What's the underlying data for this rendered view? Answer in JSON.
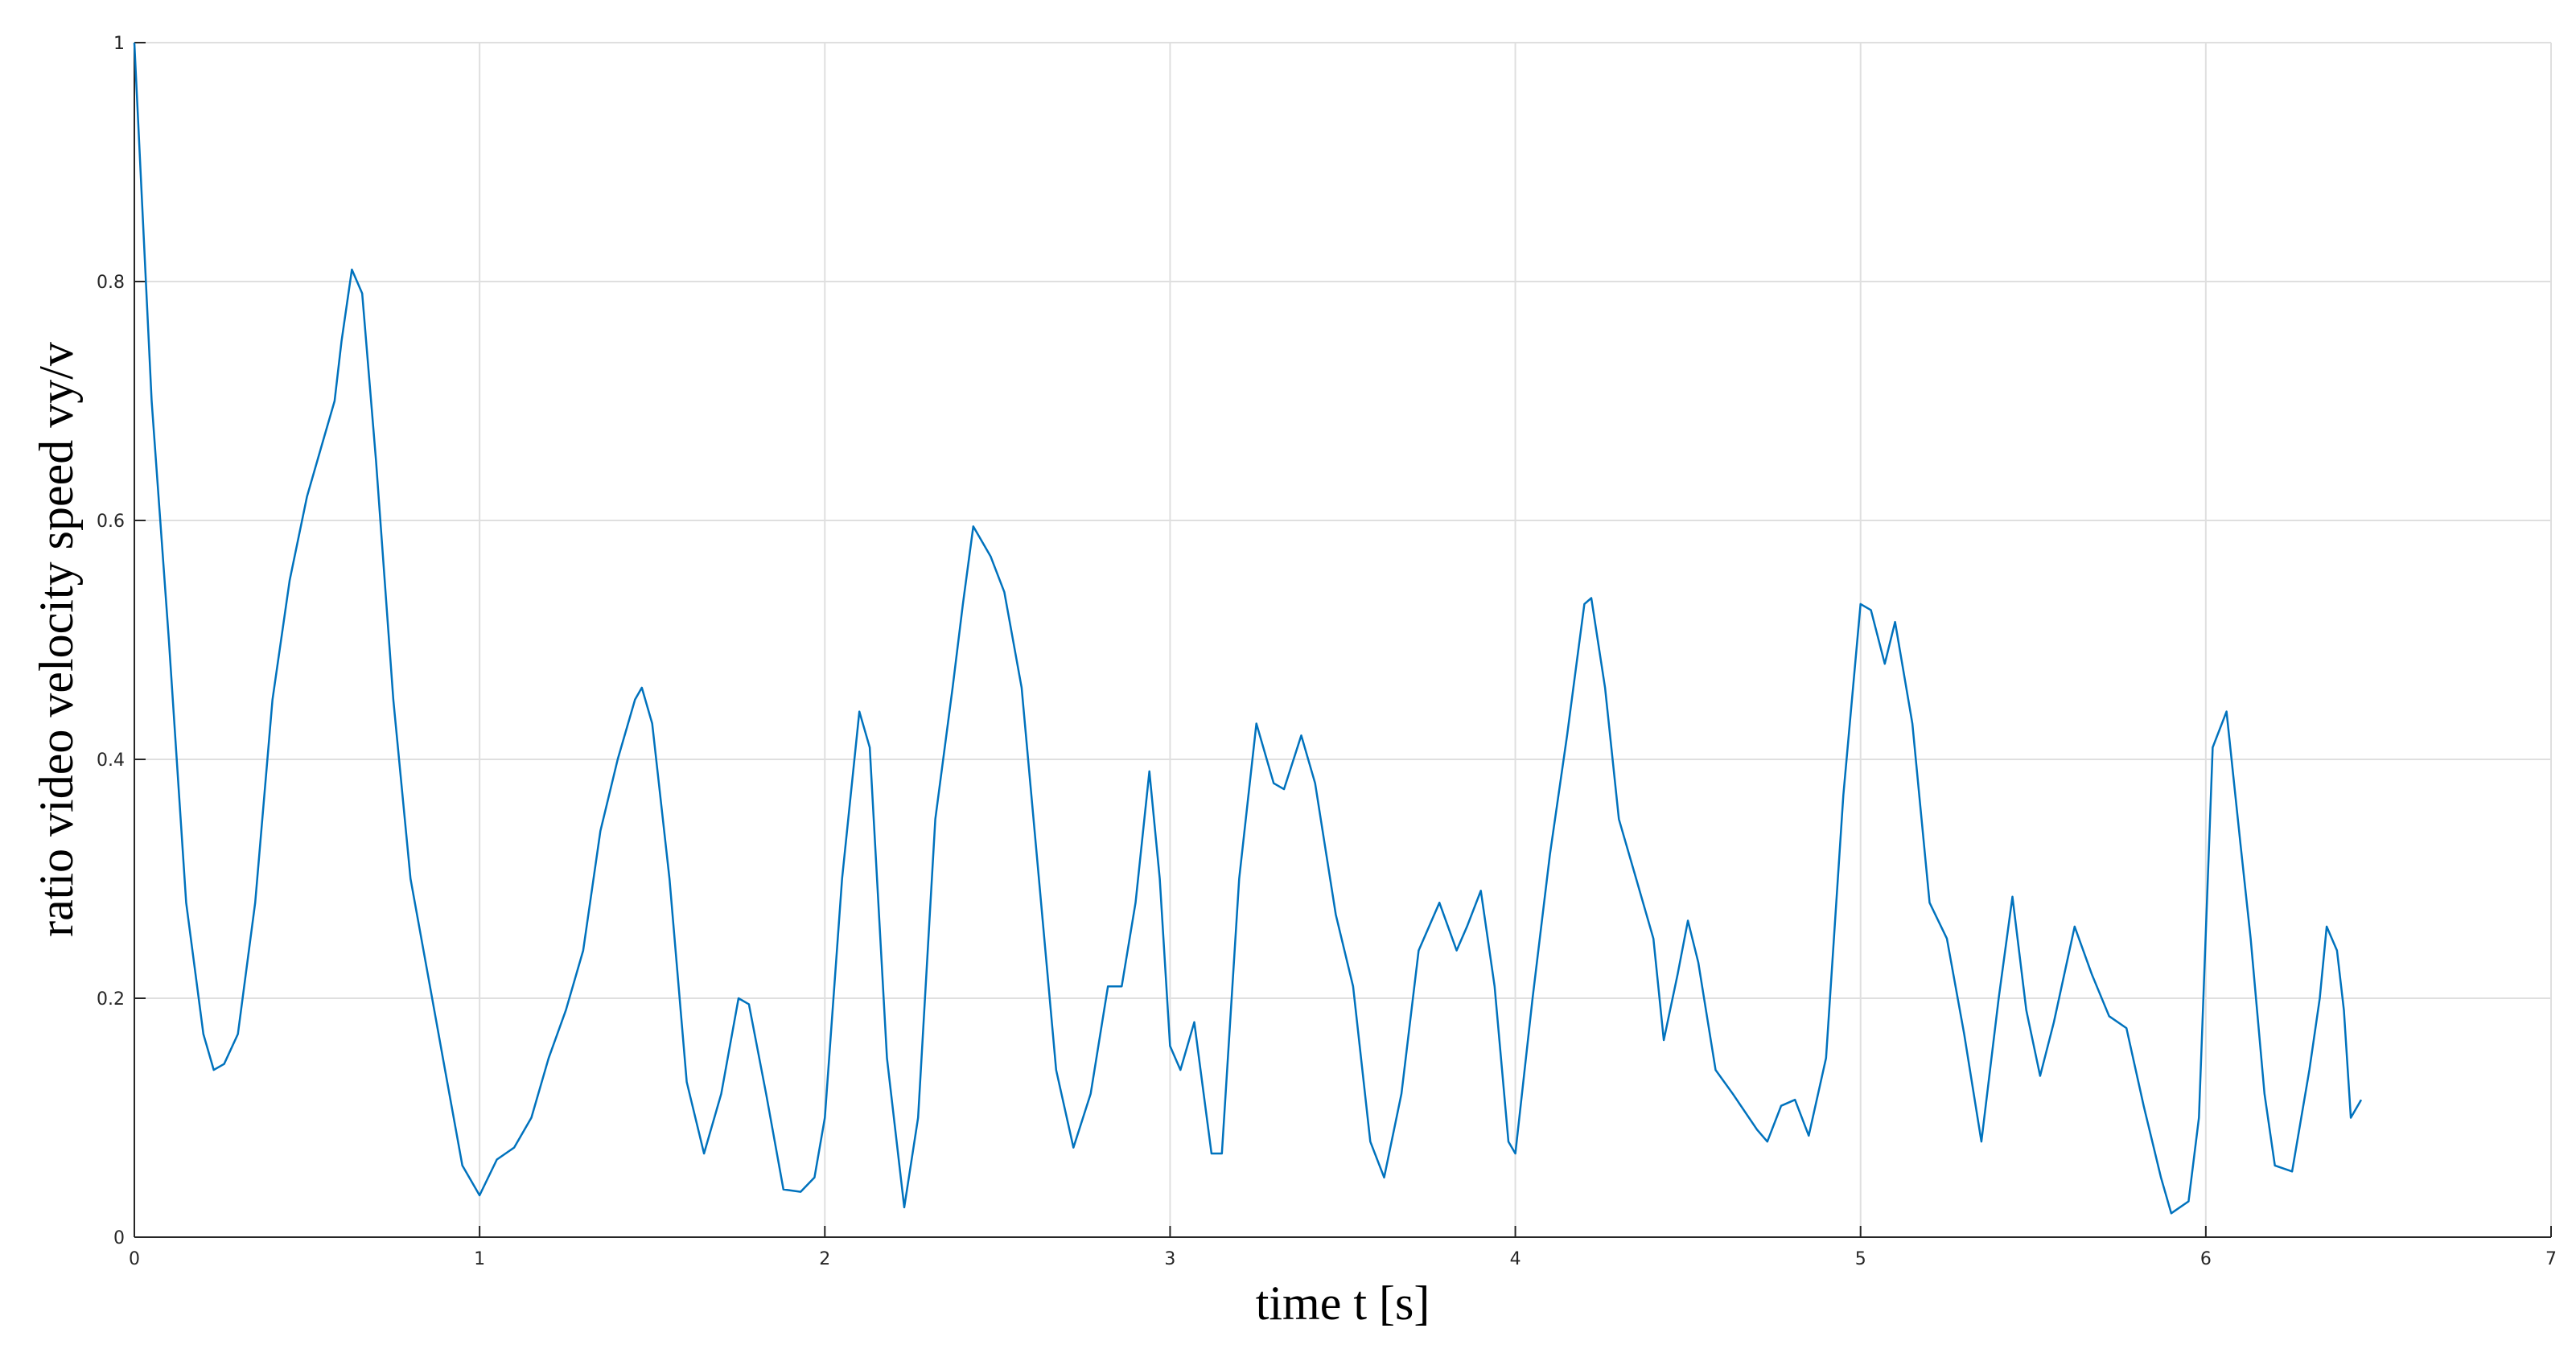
{
  "chart_data": {
    "type": "line",
    "xlabel": "time t [s]",
    "ylabel": "ratio video velocity speed vy/v",
    "x": [
      0,
      0.05,
      0.1,
      0.15,
      0.2,
      0.23,
      0.26,
      0.3,
      0.35,
      0.4,
      0.45,
      0.5,
      0.55,
      0.58,
      0.6,
      0.63,
      0.66,
      0.7,
      0.75,
      0.8,
      0.85,
      0.9,
      0.95,
      1.0,
      1.05,
      1.1,
      1.15,
      1.2,
      1.25,
      1.3,
      1.35,
      1.4,
      1.45,
      1.47,
      1.5,
      1.55,
      1.6,
      1.65,
      1.7,
      1.75,
      1.78,
      1.83,
      1.88,
      1.93,
      1.97,
      2.0,
      2.05,
      2.1,
      2.13,
      2.18,
      2.23,
      2.27,
      2.32,
      2.37,
      2.4,
      2.43,
      2.48,
      2.52,
      2.57,
      2.62,
      2.67,
      2.72,
      2.77,
      2.82,
      2.86,
      2.9,
      2.94,
      2.97,
      3.0,
      3.03,
      3.07,
      3.12,
      3.15,
      3.2,
      3.25,
      3.3,
      3.33,
      3.38,
      3.42,
      3.48,
      3.53,
      3.58,
      3.62,
      3.67,
      3.72,
      3.78,
      3.83,
      3.86,
      3.9,
      3.94,
      3.98,
      4.0,
      4.05,
      4.1,
      4.15,
      4.2,
      4.22,
      4.26,
      4.3,
      4.35,
      4.4,
      4.43,
      4.47,
      4.5,
      4.53,
      4.58,
      4.63,
      4.7,
      4.73,
      4.77,
      4.81,
      4.85,
      4.9,
      4.95,
      5.0,
      5.03,
      5.07,
      5.1,
      5.15,
      5.2,
      5.25,
      5.3,
      5.35,
      5.4,
      5.44,
      5.48,
      5.52,
      5.56,
      5.62,
      5.67,
      5.72,
      5.77,
      5.82,
      5.87,
      5.9,
      5.95,
      5.98,
      6.02,
      6.06,
      6.1,
      6.13,
      6.17,
      6.2,
      6.25,
      6.3,
      6.33,
      6.35,
      6.38,
      6.4,
      6.42,
      6.45
    ],
    "values": [
      1.0,
      0.7,
      0.5,
      0.28,
      0.17,
      0.14,
      0.145,
      0.17,
      0.28,
      0.45,
      0.55,
      0.62,
      0.67,
      0.7,
      0.75,
      0.81,
      0.79,
      0.65,
      0.45,
      0.3,
      0.22,
      0.14,
      0.06,
      0.035,
      0.065,
      0.075,
      0.1,
      0.15,
      0.19,
      0.24,
      0.34,
      0.4,
      0.45,
      0.46,
      0.43,
      0.3,
      0.13,
      0.07,
      0.12,
      0.2,
      0.195,
      0.12,
      0.04,
      0.038,
      0.05,
      0.1,
      0.3,
      0.44,
      0.41,
      0.15,
      0.025,
      0.1,
      0.35,
      0.46,
      0.53,
      0.595,
      0.57,
      0.54,
      0.46,
      0.3,
      0.14,
      0.075,
      0.12,
      0.21,
      0.21,
      0.28,
      0.39,
      0.3,
      0.16,
      0.14,
      0.18,
      0.07,
      0.07,
      0.3,
      0.43,
      0.38,
      0.375,
      0.42,
      0.38,
      0.27,
      0.21,
      0.08,
      0.05,
      0.12,
      0.24,
      0.28,
      0.24,
      0.26,
      0.29,
      0.21,
      0.08,
      0.07,
      0.2,
      0.32,
      0.42,
      0.53,
      0.535,
      0.46,
      0.35,
      0.3,
      0.25,
      0.165,
      0.22,
      0.265,
      0.23,
      0.14,
      0.12,
      0.09,
      0.08,
      0.11,
      0.115,
      0.085,
      0.15,
      0.37,
      0.53,
      0.525,
      0.48,
      0.515,
      0.43,
      0.28,
      0.25,
      0.17,
      0.08,
      0.2,
      0.285,
      0.19,
      0.135,
      0.18,
      0.26,
      0.22,
      0.185,
      0.175,
      0.11,
      0.05,
      0.02,
      0.03,
      0.1,
      0.41,
      0.44,
      0.33,
      0.25,
      0.12,
      0.06,
      0.055,
      0.14,
      0.2,
      0.26,
      0.24,
      0.19,
      0.1,
      0.115
    ],
    "color": "#0072bd",
    "xlim": [
      0,
      7
    ],
    "xticks": [
      0,
      1,
      2,
      3,
      4,
      5,
      6,
      7
    ],
    "ylim": [
      0,
      1
    ],
    "yticks": [
      0,
      0.2,
      0.4,
      0.6,
      0.8,
      1
    ],
    "grid": true
  }
}
